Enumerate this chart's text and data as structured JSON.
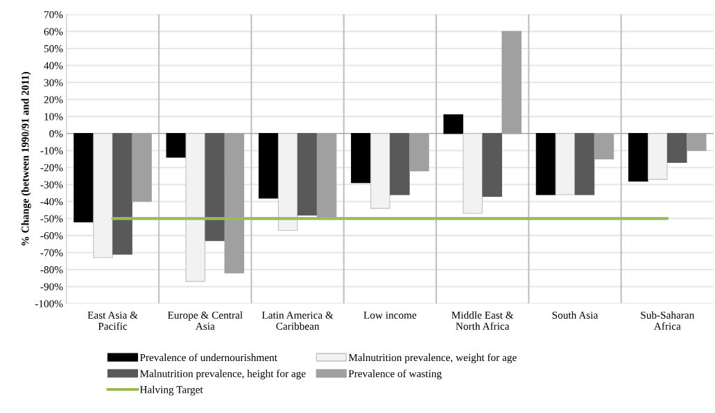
{
  "chart_data": {
    "type": "bar",
    "categories": [
      "East Asia &\nPacific",
      "Europe & Central\nAsia",
      "Latin America &\nCaribbean",
      "Low income",
      "Middle East &\nNorth Africa",
      "South Asia",
      "Sub-Saharan\nAfrica"
    ],
    "ylabel": "% Change (between 1990/91 and 2011)",
    "series": [
      {
        "name": "Prevalence of undernourishment",
        "color": "#000000",
        "values": [
          -52,
          -14,
          -38,
          -29,
          11,
          -36,
          -28
        ]
      },
      {
        "name": "Malnutrition prevalence, weight for age",
        "color": "#f2f2f2",
        "values": [
          -73,
          -87,
          -57,
          -44,
          -47,
          -36,
          -27
        ]
      },
      {
        "name": "Malnutrition prevalence, height for age",
        "color": "#595959",
        "values": [
          -71,
          -63,
          -48,
          -36,
          -37,
          -36,
          -17
        ]
      },
      {
        "name": "Prevalence of wasting",
        "color": "#a0a0a0",
        "values": [
          -40,
          -82,
          -49,
          -22,
          60,
          -15,
          -10
        ]
      },
      {
        "name": "Halving Target",
        "type": "line",
        "color": "#9bbb59",
        "values": [
          -50,
          -50,
          -50,
          -50,
          -50,
          -50,
          -50
        ]
      }
    ],
    "ylim": [
      -100,
      70
    ],
    "yticks": [
      {
        "value": -100,
        "label": "-100%"
      },
      {
        "value": -90,
        "label": "-90%"
      },
      {
        "value": -80,
        "label": "-80%"
      },
      {
        "value": -70,
        "label": "-70%"
      },
      {
        "value": -60,
        "label": "-60%"
      },
      {
        "value": -50,
        "label": "-50%"
      },
      {
        "value": -40,
        "label": "-40%"
      },
      {
        "value": -30,
        "label": "-30%"
      },
      {
        "value": -20,
        "label": "-20%"
      },
      {
        "value": -10,
        "label": "-10%"
      },
      {
        "value": 0,
        "label": "0%"
      },
      {
        "value": 10,
        "label": "10%"
      },
      {
        "value": 20,
        "label": "20%"
      },
      {
        "value": 30,
        "label": "30%"
      },
      {
        "value": 40,
        "label": "40%"
      },
      {
        "value": 50,
        "label": "50%"
      },
      {
        "value": 60,
        "label": "60%"
      },
      {
        "value": 70,
        "label": "70%"
      }
    ],
    "grid": true,
    "legend": "bottom"
  }
}
